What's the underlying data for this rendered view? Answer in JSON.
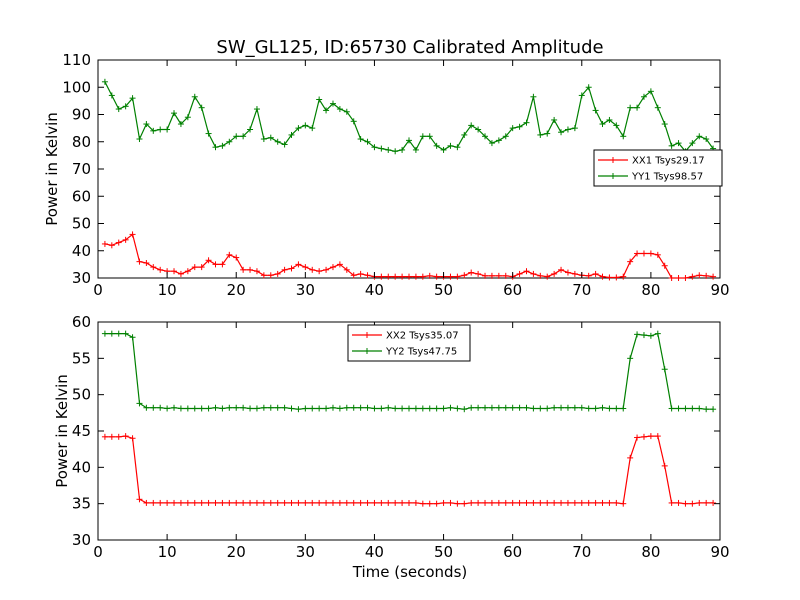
{
  "title": "SW_GL125, ID:65730 Calibrated Amplitude",
  "colors": {
    "red": "#ff0000",
    "green": "#008000",
    "axis": "#000000"
  },
  "chart_data": [
    {
      "type": "line",
      "title": "SW_GL125, ID:65730 Calibrated Amplitude",
      "xlabel": "",
      "ylabel": "Power in Kelvin",
      "xlim": [
        0,
        90
      ],
      "ylim": [
        30,
        110
      ],
      "xticks": [
        "0",
        "10",
        "20",
        "30",
        "40",
        "50",
        "60",
        "70",
        "80",
        "90"
      ],
      "yticks": [
        "30",
        "40",
        "50",
        "60",
        "70",
        "80",
        "90",
        "100",
        "110"
      ],
      "legend_position": "center-right",
      "grid": false,
      "x": [
        1,
        2,
        3,
        4,
        5,
        6,
        7,
        8,
        9,
        10,
        11,
        12,
        13,
        14,
        15,
        16,
        17,
        18,
        19,
        20,
        21,
        22,
        23,
        24,
        25,
        26,
        27,
        28,
        29,
        30,
        31,
        32,
        33,
        34,
        35,
        36,
        37,
        38,
        39,
        40,
        41,
        42,
        43,
        44,
        45,
        46,
        47,
        48,
        49,
        50,
        51,
        52,
        53,
        54,
        55,
        56,
        57,
        58,
        59,
        60,
        61,
        62,
        63,
        64,
        65,
        66,
        67,
        68,
        69,
        70,
        71,
        72,
        73,
        74,
        75,
        76,
        77,
        78,
        79,
        80,
        81,
        82,
        83,
        84,
        85,
        86,
        87,
        88,
        89
      ],
      "series": [
        {
          "name": "XX1 Tsys29.17",
          "color": "#ff0000",
          "values": [
            42.5,
            42,
            43,
            44,
            46,
            36,
            35.5,
            34,
            33,
            32.5,
            32.5,
            31.5,
            32.5,
            34,
            34,
            36.5,
            35,
            35,
            38.5,
            37.5,
            33,
            33,
            32.5,
            31,
            31,
            31.5,
            33,
            33.5,
            35,
            34,
            33,
            32.5,
            33,
            34,
            35,
            33,
            31,
            31.5,
            31,
            30.5,
            30.5,
            30.5,
            30.5,
            30.5,
            30.5,
            30.5,
            30.5,
            30.8,
            30.5,
            30.5,
            30.5,
            30.5,
            31,
            32,
            31.5,
            30.8,
            30.8,
            30.8,
            30.8,
            30.5,
            31.5,
            32.5,
            31.5,
            30.8,
            30.5,
            31.5,
            33,
            32,
            31.5,
            31,
            30.8,
            31.5,
            30.5,
            30.2,
            30.2,
            30.5,
            36,
            39,
            39,
            39,
            38.5,
            34.5,
            30,
            30,
            30,
            30.5,
            31,
            30.8,
            30.5
          ]
        },
        {
          "name": "YY1 Tsys98.57",
          "color": "#008000",
          "values": [
            102,
            97,
            92,
            93,
            96,
            81,
            86.5,
            84,
            84.5,
            84.5,
            90.5,
            86.5,
            89,
            96.5,
            92.5,
            83,
            78,
            78.5,
            80,
            82,
            82,
            84.5,
            92,
            81,
            81.5,
            80,
            79,
            82.5,
            85,
            86,
            85,
            95.5,
            91.5,
            94,
            92,
            91,
            87.5,
            81,
            80,
            78,
            77.5,
            77,
            76.5,
            77,
            80.5,
            77,
            82,
            82,
            78.5,
            77,
            78.5,
            78,
            82.5,
            86,
            84.5,
            82,
            79.5,
            80.5,
            82,
            85,
            85.5,
            87,
            96.5,
            82.5,
            83,
            88,
            83.5,
            84.5,
            85,
            97,
            100,
            91.5,
            86.5,
            88,
            86,
            82,
            92.5,
            92.5,
            96.5,
            98.5,
            92.5,
            86.5,
            78.5,
            79.5,
            76.5,
            79.5,
            82,
            81,
            77.5
          ]
        }
      ]
    },
    {
      "type": "line",
      "title": "",
      "xlabel": "Time (seconds)",
      "ylabel": "Power in Kelvin",
      "xlim": [
        0,
        90
      ],
      "ylim": [
        30,
        60
      ],
      "xticks": [
        "0",
        "10",
        "20",
        "30",
        "40",
        "50",
        "60",
        "70",
        "80",
        "90"
      ],
      "yticks": [
        "30",
        "35",
        "40",
        "45",
        "50",
        "55",
        "60"
      ],
      "legend_position": "top-center",
      "grid": false,
      "x": [
        1,
        2,
        3,
        4,
        5,
        6,
        7,
        8,
        9,
        10,
        11,
        12,
        13,
        14,
        15,
        16,
        17,
        18,
        19,
        20,
        21,
        22,
        23,
        24,
        25,
        26,
        27,
        28,
        29,
        30,
        31,
        32,
        33,
        34,
        35,
        36,
        37,
        38,
        39,
        40,
        41,
        42,
        43,
        44,
        45,
        46,
        47,
        48,
        49,
        50,
        51,
        52,
        53,
        54,
        55,
        56,
        57,
        58,
        59,
        60,
        61,
        62,
        63,
        64,
        65,
        66,
        67,
        68,
        69,
        70,
        71,
        72,
        73,
        74,
        75,
        76,
        77,
        78,
        79,
        80,
        81,
        82,
        83,
        84,
        85,
        86,
        87,
        88,
        89
      ],
      "series": [
        {
          "name": "XX2 Tsys35.07",
          "color": "#ff0000",
          "values": [
            44.2,
            44.2,
            44.2,
            44.3,
            44,
            35.6,
            35.1,
            35.1,
            35.1,
            35.1,
            35.1,
            35.1,
            35.1,
            35.1,
            35.1,
            35.1,
            35.1,
            35.1,
            35.1,
            35.1,
            35.1,
            35.1,
            35.1,
            35.1,
            35.1,
            35.1,
            35.1,
            35.1,
            35.1,
            35.1,
            35.1,
            35.1,
            35.1,
            35.1,
            35.1,
            35.1,
            35.1,
            35.1,
            35.1,
            35.1,
            35.1,
            35.1,
            35.1,
            35.1,
            35.1,
            35.1,
            35,
            35,
            35,
            35.1,
            35.1,
            35,
            35,
            35.1,
            35.1,
            35.1,
            35.1,
            35.1,
            35.1,
            35.1,
            35.1,
            35.1,
            35.1,
            35.1,
            35.1,
            35.1,
            35.1,
            35.1,
            35.1,
            35.1,
            35.1,
            35.1,
            35.1,
            35.1,
            35.1,
            35,
            41.3,
            44.1,
            44.2,
            44.3,
            44.3,
            40.2,
            35.1,
            35.1,
            35,
            35,
            35.1,
            35.1,
            35.1
          ]
        },
        {
          "name": "YY2 Tsys47.75",
          "color": "#008000",
          "values": [
            58.4,
            58.4,
            58.4,
            58.4,
            57.9,
            48.8,
            48.2,
            48.2,
            48.2,
            48.1,
            48.2,
            48.1,
            48.1,
            48.1,
            48.1,
            48.1,
            48.2,
            48.1,
            48.2,
            48.2,
            48.2,
            48.1,
            48.1,
            48.2,
            48.2,
            48.2,
            48.2,
            48.1,
            48,
            48.1,
            48.1,
            48.1,
            48.1,
            48.2,
            48.1,
            48.2,
            48.2,
            48.2,
            48.2,
            48.1,
            48.1,
            48.2,
            48.1,
            48.1,
            48.1,
            48.1,
            48.1,
            48.1,
            48.1,
            48.1,
            48.2,
            48.1,
            48,
            48.2,
            48.2,
            48.2,
            48.2,
            48.2,
            48.2,
            48.2,
            48.2,
            48.2,
            48.1,
            48.1,
            48.1,
            48.2,
            48.2,
            48.2,
            48.2,
            48.2,
            48.1,
            48.1,
            48.2,
            48.1,
            48.1,
            48.1,
            55,
            58.3,
            58.2,
            58.1,
            58.4,
            53.5,
            48.1,
            48.1,
            48.1,
            48.1,
            48.1,
            48,
            48
          ]
        }
      ]
    }
  ]
}
